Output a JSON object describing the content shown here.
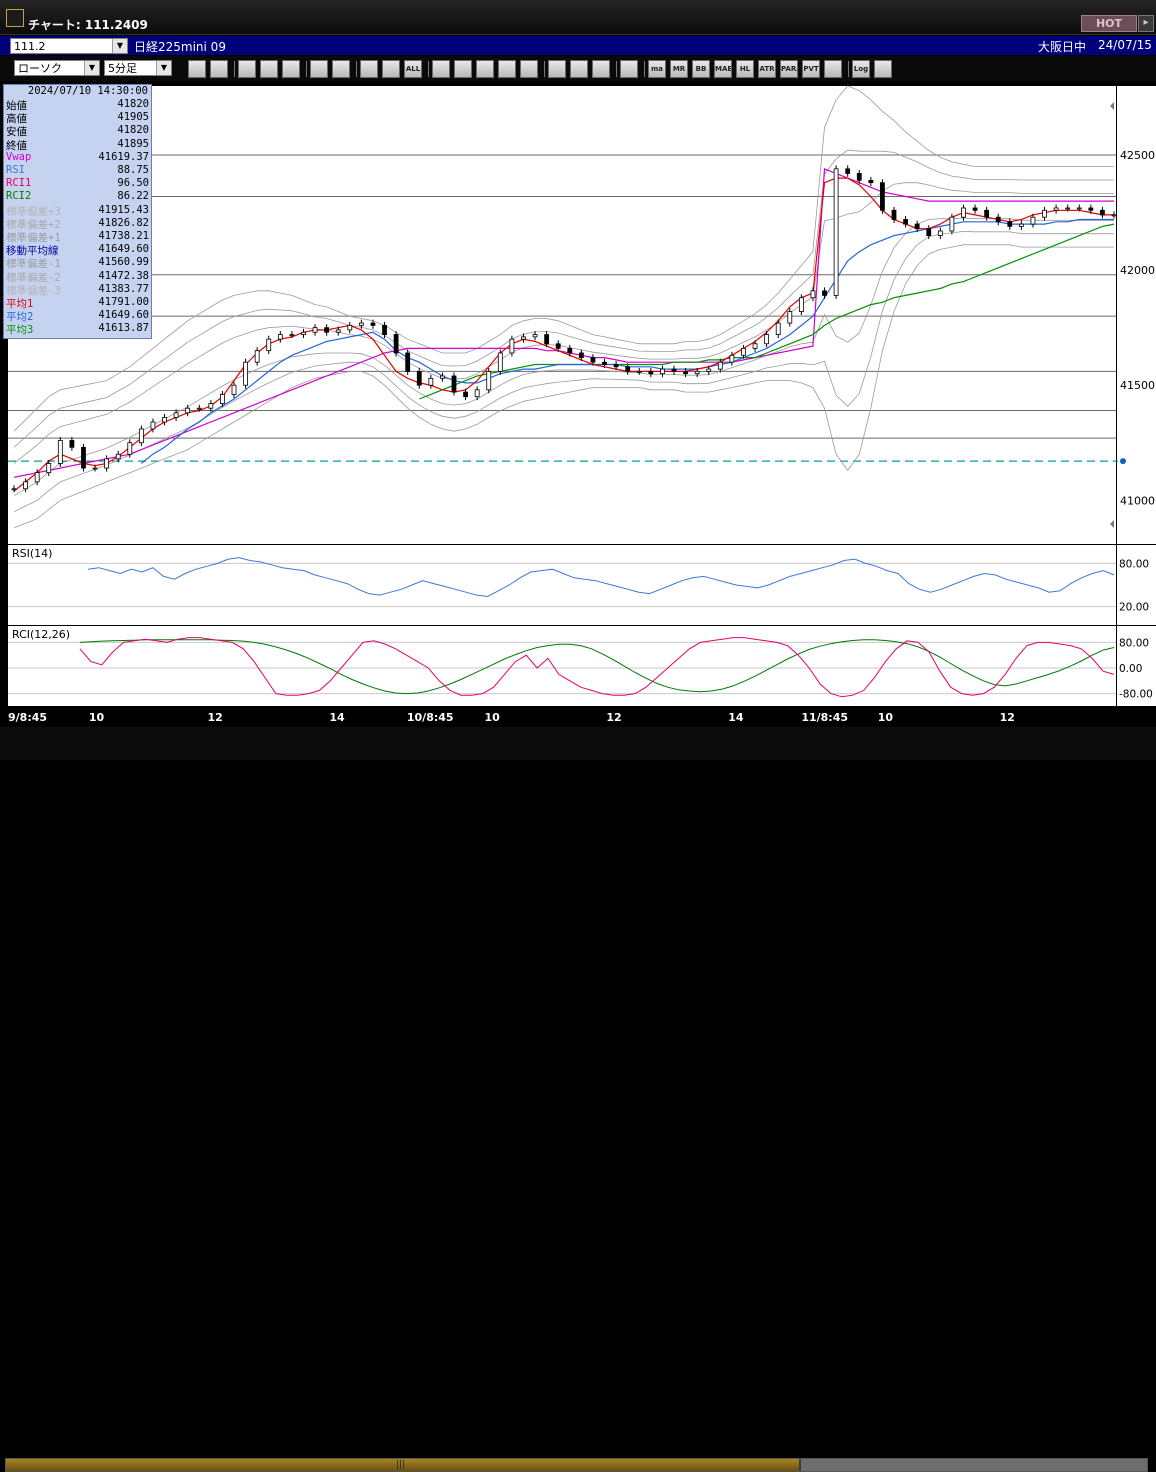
{
  "window": {
    "title": "チャート: 111.2409",
    "hot_label": "HOT",
    "hot_btn": "▸"
  },
  "symbol_bar": {
    "symbol_value": "111.2",
    "instrument": "日経225mini 09",
    "session": "大阪日中",
    "date": "24/07/15"
  },
  "toolbar": {
    "chart_type": "ローソク",
    "period": "5分足",
    "buttons": [
      "magnify",
      "cursor",
      "down-arrow",
      "zoom",
      "bar-chart",
      "buysell",
      "gray",
      "candle",
      "candle-two",
      "all",
      "pencil",
      "line-tool",
      "arrow",
      "undo",
      "doc",
      "trash",
      "box",
      "wrench",
      "rainbow",
      "ma",
      "mr",
      "bb",
      "mae",
      "hl",
      "atr",
      "para",
      "pvt",
      "box2",
      "log",
      "export"
    ],
    "button_labels": {
      "all": "ALL",
      "ma": "ma",
      "mr": "MR",
      "bb": "BB",
      "mae": "MAE",
      "hl": "HL",
      "atr": "ATR",
      "para": "PARA",
      "pvt": "PVT",
      "log": "Log"
    }
  },
  "info_panel": {
    "datetime": "2024/07/10 14:30:00",
    "rows": [
      {
        "label": "始値",
        "value": "41820",
        "color": "#000000"
      },
      {
        "label": "高値",
        "value": "41905",
        "color": "#000000"
      },
      {
        "label": "安値",
        "value": "41820",
        "color": "#000000"
      },
      {
        "label": "終値",
        "value": "41895",
        "color": "#000000"
      },
      {
        "label": "Vwap",
        "value": "41619.37",
        "color": "#d000d0"
      },
      {
        "label": "RSI",
        "value": "88.75",
        "color": "#3a7ad8"
      },
      {
        "label": "RCI1",
        "value": "96.50",
        "color": "#e8006a"
      },
      {
        "label": "RCI2",
        "value": "86.22",
        "color": "#007a00"
      },
      {
        "label": "標準偏差+3",
        "value": "41915.43",
        "color": "#b4b4b4"
      },
      {
        "label": "標準偏差+2",
        "value": "41826.82",
        "color": "#a8a8a8"
      },
      {
        "label": "標準偏差+1",
        "value": "41738.21",
        "color": "#9c9c9c"
      },
      {
        "label": "移動平均線",
        "value": "41649.60",
        "color": "#0000a0"
      },
      {
        "label": "標準偏差-1",
        "value": "41560.99",
        "color": "#9c9c9c"
      },
      {
        "label": "標準偏差-2",
        "value": "41472.38",
        "color": "#a8a8a8"
      },
      {
        "label": "標準偏差-3",
        "value": "41383.77",
        "color": "#b4b4b4"
      },
      {
        "label": "平均1",
        "value": "41791.00",
        "color": "#e00000"
      },
      {
        "label": "平均2",
        "value": "41649.60",
        "color": "#2266dd"
      },
      {
        "label": "平均3",
        "value": "41613.87",
        "color": "#009000"
      }
    ]
  },
  "colors": {
    "vwap": "#d000d0",
    "ma1": "#e00000",
    "ma2": "#2266dd",
    "ma3": "#009000",
    "rsi": "#3a7ad8",
    "rci1": "#e8006a",
    "rci2": "#007a00",
    "band": "#9a9a9a",
    "dash": "#00a0a0"
  },
  "chart_data": {
    "type": "line",
    "price": {
      "ylim": [
        40810,
        42800
      ],
      "y_ticks": [
        41000,
        41500,
        42000,
        42500
      ],
      "h_lines": [
        42500,
        42320,
        41980,
        41800,
        41560,
        41390,
        41270
      ],
      "current_price": 41170,
      "candles": [
        41050,
        41080,
        41120,
        41160,
        41260,
        41230,
        41140,
        41140,
        41180,
        41200,
        41250,
        41310,
        41340,
        41360,
        41380,
        41400,
        41400,
        41420,
        41460,
        41500,
        41600,
        41650,
        41700,
        41720,
        41720,
        41730,
        41750,
        41730,
        41740,
        41760,
        41770,
        41760,
        41720,
        41640,
        41560,
        41500,
        41530,
        41540,
        41470,
        41450,
        41480,
        41560,
        41640,
        41700,
        41710,
        41720,
        41680,
        41660,
        41640,
        41620,
        41600,
        41590,
        41580,
        41560,
        41560,
        41550,
        41570,
        41560,
        41550,
        41560,
        41570,
        41600,
        41630,
        41660,
        41680,
        41720,
        41770,
        41820,
        41880,
        41910,
        41890,
        42440,
        42420,
        42390,
        42380,
        42260,
        42220,
        42200,
        42180,
        42150,
        42170,
        42230,
        42270,
        42260,
        42230,
        42210,
        42190,
        42200,
        42230,
        42260,
        42270,
        42270,
        42270,
        42260,
        42240,
        42240
      ],
      "ma1": [
        41040,
        41080,
        41120,
        41170,
        41200,
        41180,
        41160,
        41150,
        41160,
        41190,
        41230,
        41270,
        41310,
        41340,
        41360,
        41380,
        41390,
        41410,
        41450,
        41520,
        41590,
        41640,
        41680,
        41700,
        41710,
        41730,
        41740,
        41740,
        41750,
        41760,
        41740,
        41700,
        41630,
        41560,
        41530,
        41510,
        41500,
        41480,
        41470,
        41480,
        41520,
        41580,
        41640,
        41680,
        41700,
        41690,
        41670,
        41650,
        41630,
        41610,
        41590,
        41580,
        41570,
        41560,
        41560,
        41560,
        41560,
        41560,
        41560,
        41570,
        41580,
        41600,
        41630,
        41660,
        41690,
        41730,
        41780,
        41840,
        41880,
        41900,
        42380,
        42400,
        42400,
        42370,
        42320,
        42260,
        42220,
        42200,
        42180,
        42180,
        42200,
        42230,
        42250,
        42240,
        42230,
        42220,
        42210,
        42220,
        42240,
        42250,
        42260,
        42260,
        42260,
        42250,
        42240,
        42240
      ],
      "ma2": [
        null,
        null,
        null,
        null,
        null,
        null,
        null,
        null,
        null,
        null,
        null,
        41160,
        41200,
        41230,
        41270,
        41310,
        41340,
        41380,
        41410,
        41440,
        41480,
        41520,
        41560,
        41600,
        41630,
        41650,
        41670,
        41690,
        41700,
        41710,
        41720,
        41730,
        41700,
        41650,
        41620,
        41600,
        41570,
        41540,
        41520,
        41510,
        41510,
        41530,
        41550,
        41560,
        41570,
        41570,
        41580,
        41590,
        41590,
        41590,
        41590,
        41590,
        41590,
        41580,
        41580,
        41580,
        41570,
        41570,
        41570,
        41570,
        41580,
        41590,
        41600,
        41620,
        41640,
        41660,
        41690,
        41720,
        41760,
        41800,
        41880,
        41960,
        42040,
        42080,
        42110,
        42130,
        42150,
        42160,
        42170,
        42180,
        42190,
        42200,
        42210,
        42210,
        42210,
        42210,
        42200,
        42200,
        42200,
        42200,
        42210,
        42210,
        42220,
        42220,
        42220,
        42220
      ],
      "ma3": [
        null,
        null,
        null,
        null,
        null,
        null,
        null,
        null,
        null,
        null,
        null,
        null,
        null,
        null,
        null,
        null,
        null,
        null,
        null,
        null,
        null,
        null,
        null,
        null,
        null,
        null,
        null,
        null,
        null,
        null,
        null,
        null,
        null,
        null,
        null,
        41440,
        41460,
        41480,
        41500,
        41520,
        41540,
        41550,
        41560,
        41570,
        41580,
        41590,
        41590,
        41590,
        41590,
        41590,
        41590,
        41590,
        41590,
        41590,
        41590,
        41590,
        41590,
        41600,
        41600,
        41600,
        41610,
        41610,
        41620,
        41620,
        41620,
        41640,
        41660,
        41680,
        41700,
        41720,
        41760,
        41790,
        41810,
        41830,
        41850,
        41860,
        41880,
        41890,
        41900,
        41910,
        41920,
        41940,
        41950,
        41970,
        41990,
        42010,
        42030,
        42050,
        42070,
        42090,
        42110,
        42130,
        42150,
        42170,
        42190,
        42200
      ],
      "vwap": [
        41100,
        41110,
        41120,
        41130,
        41140,
        41150,
        41160,
        41170,
        41180,
        41190,
        41200,
        41220,
        41240,
        41260,
        41280,
        41300,
        41320,
        41340,
        41360,
        41380,
        41400,
        41420,
        41440,
        41460,
        41480,
        41500,
        41520,
        41540,
        41560,
        41580,
        41600,
        41620,
        41640,
        41650,
        41660,
        41660,
        41660,
        41660,
        41660,
        41660,
        41660,
        41660,
        41660,
        41660,
        41660,
        41660,
        41650,
        41650,
        41640,
        41630,
        41620,
        41620,
        41610,
        41600,
        41600,
        41600,
        41600,
        41600,
        41600,
        41600,
        41600,
        41600,
        41600,
        41610,
        41620,
        41630,
        41640,
        41650,
        41660,
        41670,
        42440,
        42420,
        42400,
        42380,
        42360,
        42340,
        42330,
        42320,
        42310,
        42300,
        42300,
        42300,
        42300,
        42300,
        42300,
        42300,
        42300,
        42300,
        42300,
        42300,
        42300,
        42300,
        42300,
        42300,
        42300,
        42300
      ],
      "band_up": [
        41300,
        41350,
        41400,
        41450,
        41480,
        41490,
        41500,
        41510,
        41520,
        41550,
        41580,
        41620,
        41660,
        41700,
        41740,
        41780,
        41810,
        41840,
        41870,
        41890,
        41900,
        41910,
        41910,
        41900,
        41890,
        41870,
        41850,
        41840,
        41820,
        41800,
        41790,
        41780,
        41760,
        41730,
        41700,
        41680,
        41660,
        41640,
        41640,
        41640,
        41660,
        41690,
        41720,
        41760,
        41780,
        41790,
        41790,
        41780,
        41760,
        41740,
        41720,
        41710,
        41700,
        41690,
        41680,
        41680,
        41680,
        41680,
        41690,
        41690,
        41700,
        41720,
        41750,
        41780,
        41810,
        41850,
        41900,
        41960,
        42020,
        42080,
        42620,
        42740,
        42800,
        42780,
        42740,
        42690,
        42650,
        42600,
        42560,
        42520,
        42490,
        42470,
        42460,
        42450,
        42450,
        42450,
        42450,
        42450,
        42450,
        42450,
        42450,
        42450,
        42450,
        42450,
        42450,
        42450
      ],
      "band_dn": [
        40880,
        40900,
        40920,
        40960,
        41000,
        41020,
        41040,
        41060,
        41080,
        41100,
        41120,
        41140,
        41160,
        41180,
        41200,
        41220,
        41250,
        41280,
        41310,
        41340,
        41370,
        41400,
        41430,
        41460,
        41490,
        41510,
        41530,
        41540,
        41550,
        41560,
        41560,
        41540,
        41500,
        41450,
        41400,
        41360,
        41330,
        41310,
        41300,
        41310,
        41330,
        41360,
        41390,
        41410,
        41430,
        41440,
        41450,
        41460,
        41470,
        41480,
        41490,
        41490,
        41490,
        41490,
        41490,
        41480,
        41480,
        41480,
        41470,
        41470,
        41470,
        41480,
        41490,
        41500,
        41510,
        41520,
        41520,
        41520,
        41510,
        41490,
        41400,
        41200,
        41130,
        41200,
        41400,
        41650,
        41820,
        41940,
        42020,
        42070,
        42090,
        42100,
        42110,
        42110,
        42110,
        42110,
        42110,
        42100,
        42100,
        42100,
        42100,
        42100,
        42100,
        42100,
        42100,
        42100
      ]
    },
    "rsi": {
      "label": "RSI(14)",
      "ylim": [
        0,
        100
      ],
      "y_ticks": [
        80,
        20
      ],
      "tick_labels": [
        "80.00",
        "20.00"
      ],
      "values": [
        72,
        74,
        70,
        66,
        72,
        68,
        74,
        62,
        58,
        66,
        72,
        76,
        80,
        86,
        88,
        84,
        82,
        78,
        74,
        72,
        70,
        64,
        60,
        56,
        52,
        44,
        38,
        36,
        40,
        44,
        50,
        56,
        52,
        48,
        44,
        40,
        36,
        34,
        42,
        50,
        60,
        68,
        70,
        72,
        66,
        60,
        58,
        56,
        52,
        48,
        44,
        40,
        38,
        44,
        50,
        56,
        60,
        62,
        58,
        54,
        50,
        48,
        46,
        50,
        56,
        62,
        66,
        70,
        74,
        78,
        84,
        86,
        80,
        76,
        70,
        66,
        52,
        44,
        40,
        44,
        50,
        56,
        62,
        66,
        64,
        58,
        54,
        50,
        46,
        40,
        42,
        52,
        60,
        66,
        70,
        64
      ]
    },
    "rci": {
      "label": "RCI(12,26)",
      "ylim": [
        -100,
        100
      ],
      "y_ticks": [
        80,
        0,
        -80
      ],
      "tick_labels": [
        "80.00",
        "0.00",
        "-80.00"
      ],
      "rci1": [
        60,
        20,
        10,
        50,
        80,
        85,
        90,
        85,
        80,
        90,
        95,
        95,
        90,
        85,
        80,
        60,
        20,
        -30,
        -80,
        -85,
        -85,
        -80,
        -70,
        -40,
        0,
        40,
        80,
        85,
        75,
        60,
        40,
        20,
        0,
        -40,
        -70,
        -85,
        -85,
        -80,
        -60,
        -20,
        20,
        40,
        0,
        30,
        -20,
        -40,
        -60,
        -70,
        -80,
        -85,
        -85,
        -80,
        -60,
        -30,
        0,
        30,
        60,
        80,
        85,
        90,
        95,
        95,
        90,
        85,
        80,
        70,
        40,
        0,
        -50,
        -80,
        -90,
        -85,
        -70,
        -30,
        20,
        60,
        85,
        80,
        50,
        -10,
        -60,
        -80,
        -85,
        -80,
        -60,
        -20,
        30,
        70,
        80,
        80,
        75,
        70,
        60,
        30,
        -10,
        -20
      ],
      "rci2": [
        80,
        82,
        84,
        85,
        86,
        87,
        88,
        88,
        88,
        88,
        88,
        88,
        88,
        87,
        86,
        84,
        80,
        74,
        66,
        56,
        44,
        30,
        14,
        -2,
        -20,
        -36,
        -50,
        -62,
        -72,
        -78,
        -80,
        -78,
        -72,
        -62,
        -50,
        -36,
        -20,
        -4,
        12,
        28,
        42,
        54,
        64,
        70,
        74,
        74,
        70,
        60,
        44,
        26,
        6,
        -14,
        -32,
        -48,
        -60,
        -68,
        -72,
        -74,
        -72,
        -66,
        -56,
        -42,
        -26,
        -8,
        10,
        28,
        44,
        58,
        68,
        76,
        82,
        86,
        88,
        88,
        86,
        82,
        76,
        66,
        52,
        34,
        14,
        -6,
        -24,
        -40,
        -52,
        -56,
        -50,
        -40,
        -30,
        -20,
        -8,
        6,
        22,
        40,
        56,
        64
      ]
    },
    "x_labels": [
      {
        "label": "9/8:45",
        "pos": 0.0
      },
      {
        "label": "10",
        "pos": 0.073
      },
      {
        "label": "12",
        "pos": 0.18
      },
      {
        "label": "14",
        "pos": 0.29
      },
      {
        "label": "10/8:45",
        "pos": 0.36
      },
      {
        "label": "10",
        "pos": 0.43
      },
      {
        "label": "12",
        "pos": 0.54
      },
      {
        "label": "14",
        "pos": 0.65
      },
      {
        "label": "11/8:45",
        "pos": 0.716
      },
      {
        "label": "10",
        "pos": 0.785
      },
      {
        "label": "12",
        "pos": 0.895
      }
    ]
  }
}
